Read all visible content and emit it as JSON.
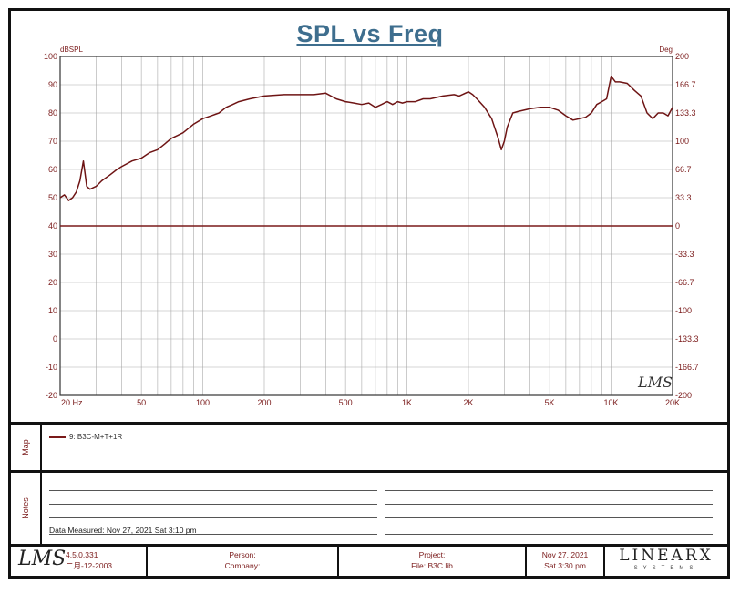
{
  "chart_data": {
    "type": "line",
    "title": "SPL vs Freq",
    "ylabel_left": "dBSPL",
    "ylabel_right": "Deg",
    "x_scale": "log",
    "xlim": [
      20,
      20000
    ],
    "ylim": [
      -20,
      100
    ],
    "y2lim": [
      -200,
      200
    ],
    "grid": true,
    "x_ticks": [
      {
        "label": "20  Hz",
        "value": 20
      },
      {
        "label": "50",
        "value": 50
      },
      {
        "label": "100",
        "value": 100
      },
      {
        "label": "200",
        "value": 200
      },
      {
        "label": "500",
        "value": 500
      },
      {
        "label": "1K",
        "value": 1000
      },
      {
        "label": "2K",
        "value": 2000
      },
      {
        "label": "5K",
        "value": 5000
      },
      {
        "label": "10K",
        "value": 10000
      },
      {
        "label": "20K",
        "value": 20000
      }
    ],
    "y_ticks": [
      "100",
      "90",
      "80",
      "70",
      "60",
      "50",
      "40",
      "30",
      "20",
      "10",
      "0",
      "-10",
      "-20"
    ],
    "y2_ticks": [
      "200",
      "166.7",
      "133.3",
      "100",
      "66.7",
      "33.3",
      "0",
      "-33.3",
      "-66.7",
      "-100",
      "-133.3",
      "-166.7",
      "-200"
    ],
    "series": [
      {
        "name": "9: B3C-M+T+1R",
        "color": "#6e1414",
        "x": [
          20,
          21,
          22,
          23,
          24,
          25,
          26,
          27,
          28,
          30,
          32,
          35,
          38,
          40,
          45,
          50,
          55,
          60,
          65,
          70,
          75,
          80,
          90,
          100,
          110,
          120,
          130,
          140,
          150,
          170,
          200,
          250,
          300,
          350,
          400,
          450,
          500,
          550,
          600,
          650,
          700,
          750,
          800,
          850,
          900,
          950,
          1000,
          1100,
          1200,
          1300,
          1500,
          1700,
          1800,
          2000,
          2100,
          2200,
          2400,
          2600,
          2800,
          2900,
          3000,
          3100,
          3300,
          3500,
          4000,
          4500,
          5000,
          5500,
          6000,
          6500,
          7000,
          7500,
          8000,
          8500,
          9000,
          9500,
          10000,
          10500,
          11000,
          12000,
          13000,
          14000,
          15000,
          16000,
          17000,
          18000,
          19000,
          20000
        ],
        "values": [
          50,
          51,
          49,
          50,
          52,
          56,
          63,
          54,
          53,
          54,
          56,
          58,
          60,
          61,
          63,
          64,
          66,
          67,
          69,
          71,
          72,
          73,
          76,
          78,
          79,
          80,
          82,
          83,
          84,
          85,
          86,
          86.5,
          86.5,
          86.5,
          87,
          85,
          84,
          83.5,
          83,
          83.5,
          82,
          83,
          84,
          83,
          84,
          83.5,
          84,
          84,
          85,
          85,
          86,
          86.5,
          86,
          87.5,
          86.5,
          85,
          82,
          78,
          71,
          67,
          70,
          75,
          80,
          80.5,
          81.5,
          82,
          82,
          81,
          79,
          77.5,
          78,
          78.5,
          80,
          83,
          84,
          85,
          93,
          91,
          91,
          90.5,
          88,
          86,
          80,
          78,
          80,
          80,
          79,
          82
        ]
      }
    ]
  },
  "map": {
    "label": "Map",
    "entry": "9: B3C-M+T+1R"
  },
  "notes": {
    "label": "Notes",
    "measured": "Data Measured: Nov 27, 2021  Sat  3:10 pm"
  },
  "watermark": "LMS",
  "footer": {
    "logo": "LMS",
    "version": "4.5.0.331",
    "build_date": "二月-12-2003",
    "person_label": "Person:",
    "company_label": "Company:",
    "project_label": "Project:",
    "file_label": "File: B3C.lib",
    "date": "Nov 27, 2021",
    "time": "Sat  3:30 pm",
    "brand": "LINEARX",
    "brand_sub": "SYSTEMS"
  }
}
